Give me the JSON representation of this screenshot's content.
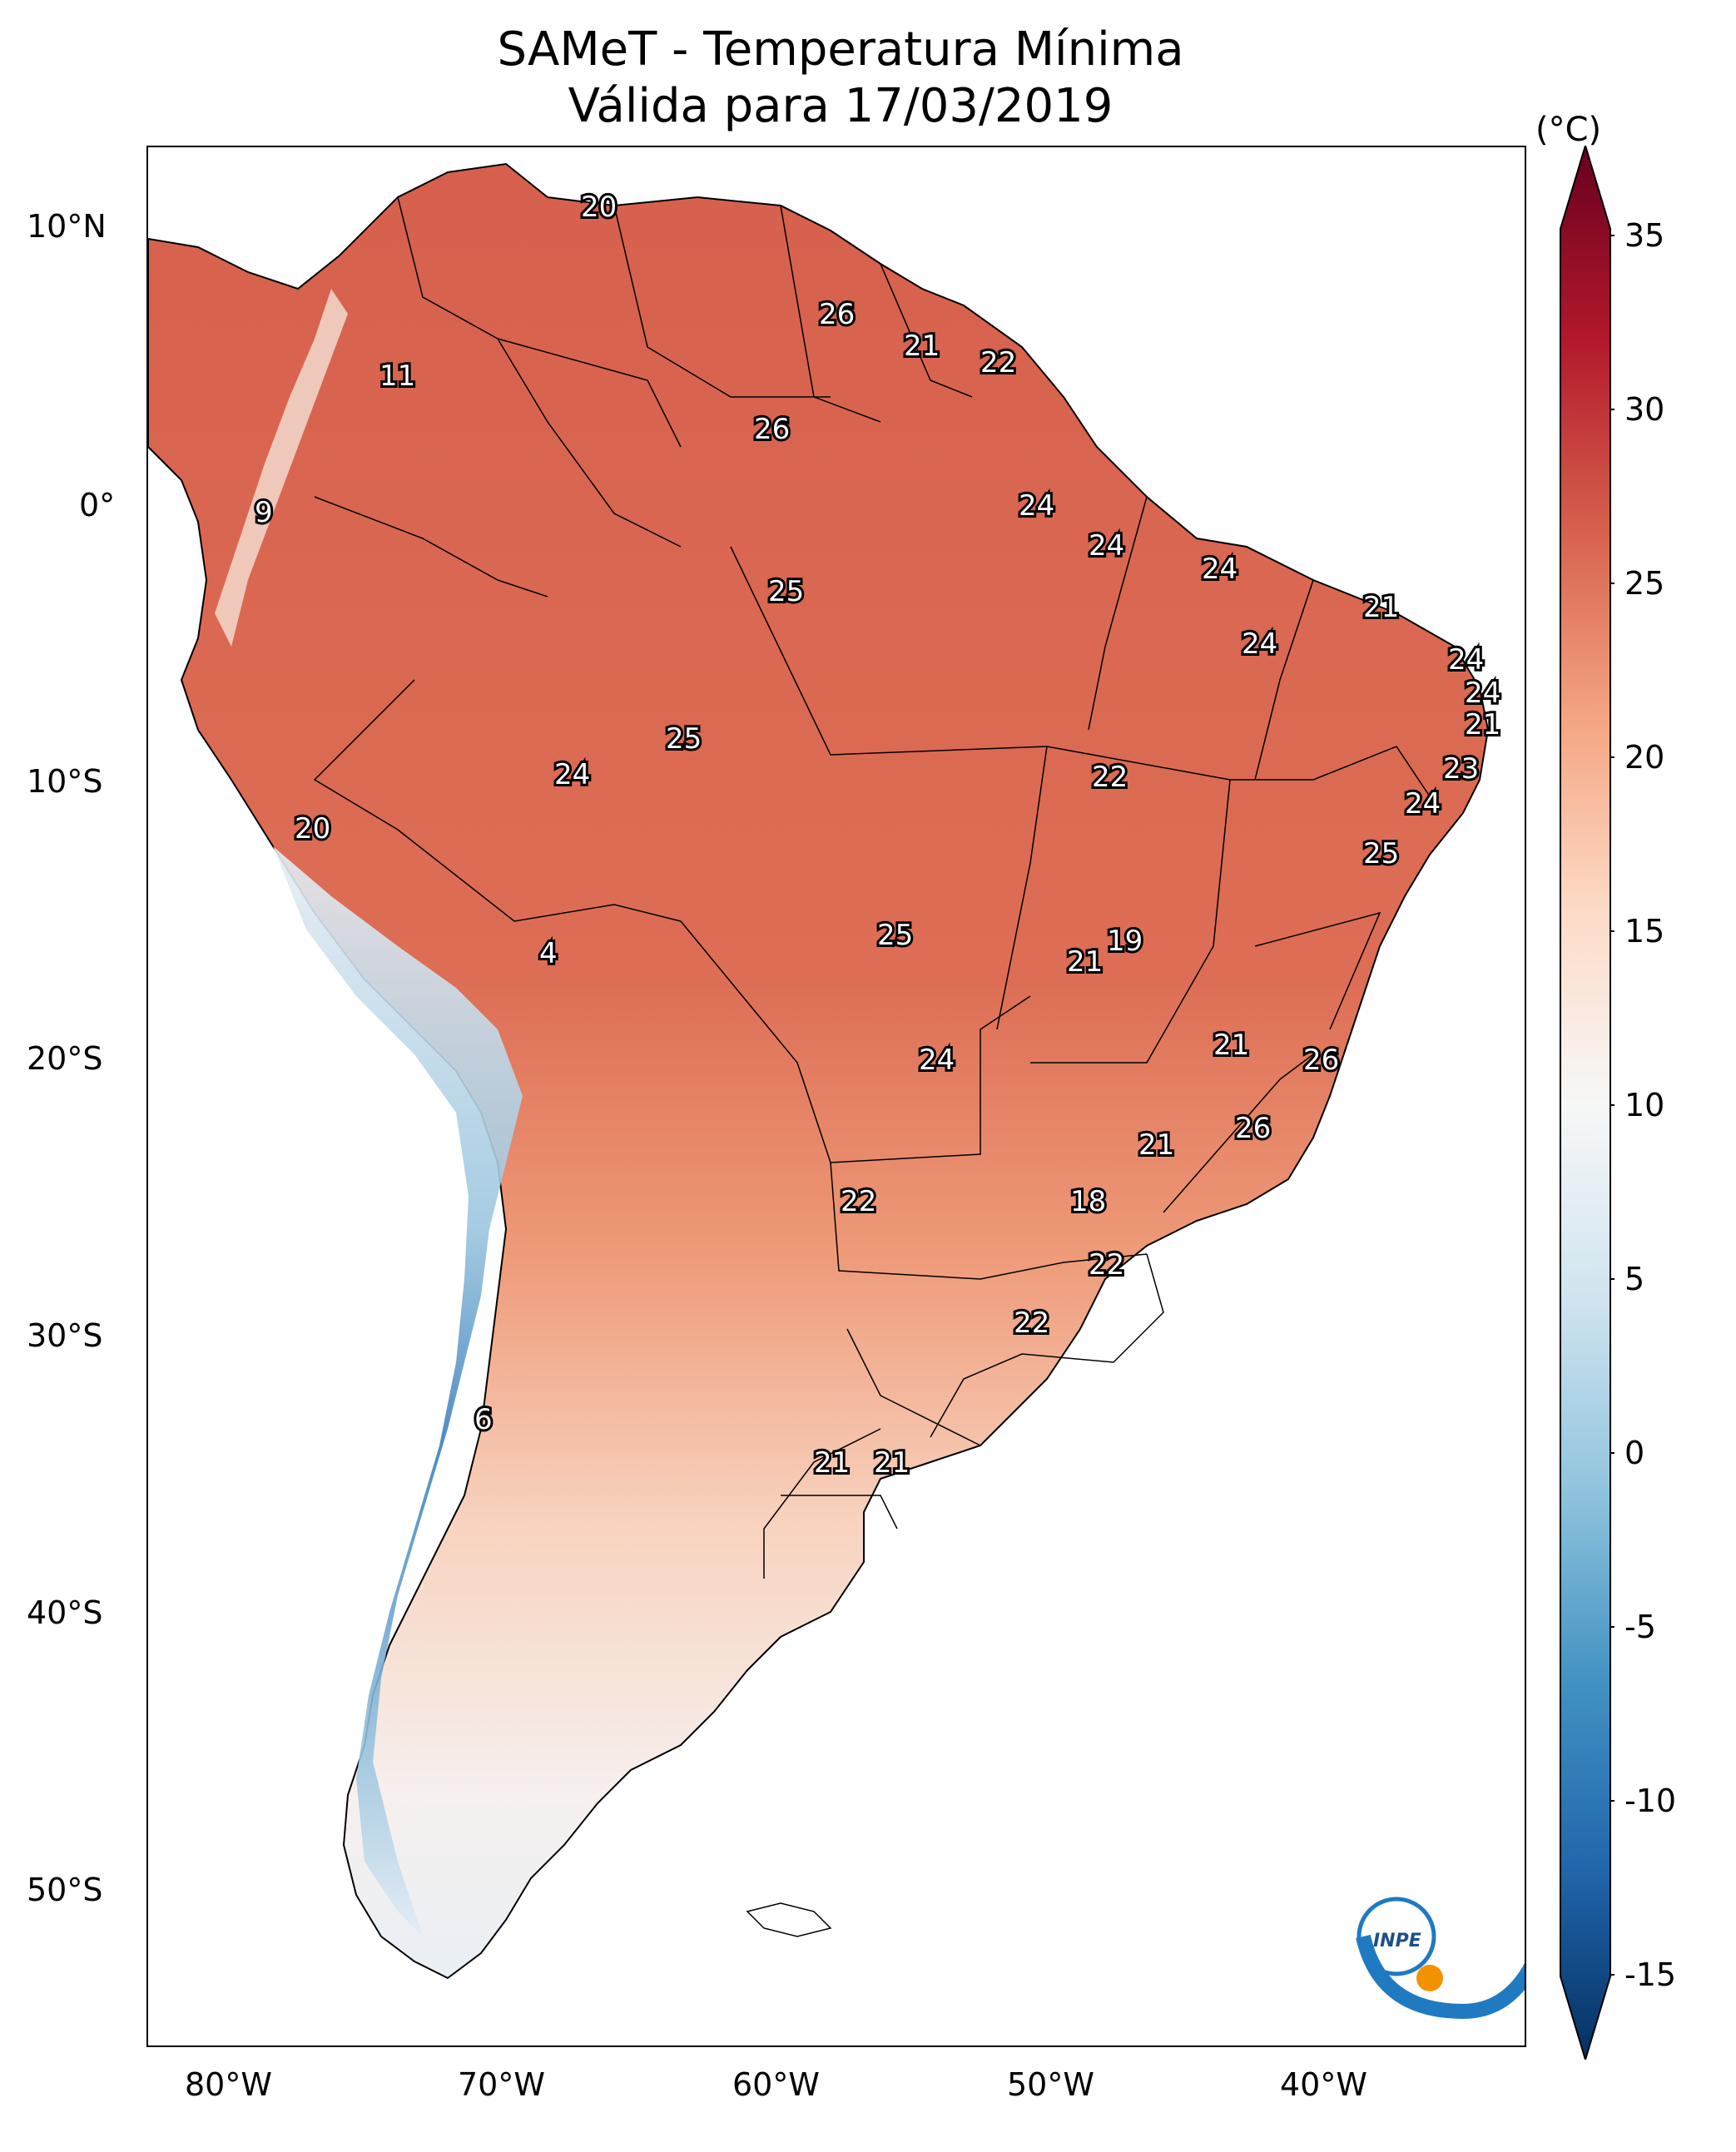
{
  "title": "SAMeT - Temperatura Mínima",
  "subtitle": "Válida para 17/03/2019",
  "colorbar": {
    "unit": "(°C)",
    "ticks": [
      "35",
      "30",
      "25",
      "20",
      "15",
      "10",
      "5",
      "0",
      "-5",
      "-10",
      "-15"
    ],
    "range": [
      -15,
      35
    ],
    "colors": [
      "#053061",
      "#2166ac",
      "#4393c3",
      "#92c5de",
      "#d1e5f0",
      "#f7f7f7",
      "#fddbc7",
      "#f4a582",
      "#d6604d",
      "#b2182b",
      "#67001f"
    ]
  },
  "axes": {
    "lat_labels": [
      "10°N",
      "0°",
      "10°S",
      "20°S",
      "30°S",
      "40°S",
      "50°S"
    ],
    "lon_labels": [
      "80°W",
      "70°W",
      "60°W",
      "50°W",
      "40°W"
    ]
  },
  "city_values": [
    "20",
    "11",
    "9",
    "26",
    "21",
    "22",
    "26",
    "24",
    "24",
    "25",
    "24",
    "21",
    "24",
    "24",
    "24",
    "21",
    "25",
    "24",
    "22",
    "23",
    "24",
    "20",
    "25",
    "4",
    "19",
    "21",
    "25",
    "24",
    "21",
    "26",
    "21",
    "26",
    "22",
    "18",
    "22",
    "22",
    "6",
    "21",
    "21"
  ],
  "logo": {
    "text": "INPE"
  }
}
